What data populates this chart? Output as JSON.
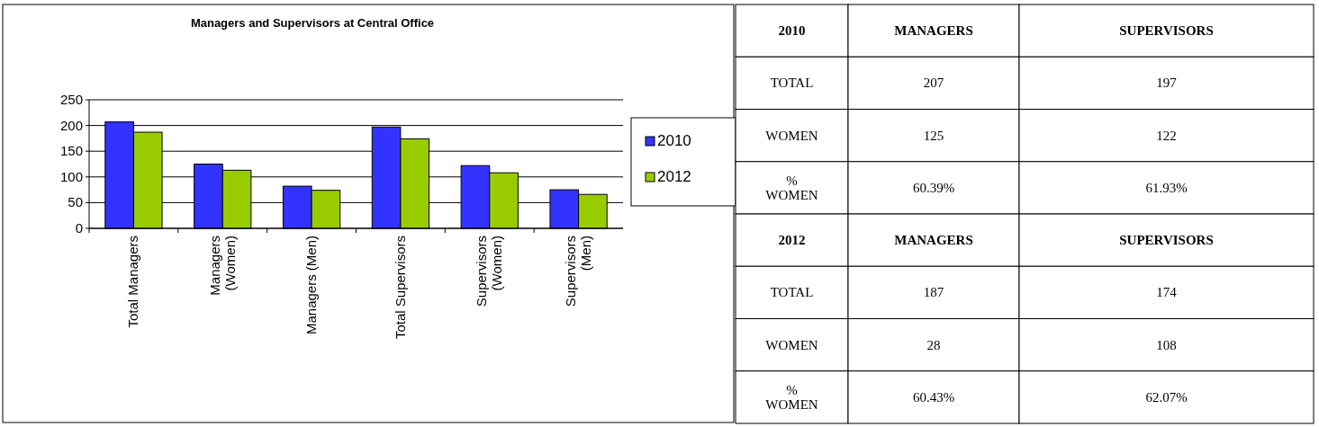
{
  "chart_data": [
    {
      "type": "bar",
      "title": "Managers and Supervisors at Central Office",
      "categories": [
        "Total Managers",
        "Managers\n(Women)",
        "Managers (Men)",
        "Total Supervisors",
        "Supervisors\n(Women)",
        "Supervisors\n(Men)"
      ],
      "series": [
        {
          "name": "2010",
          "color": "#3333ff",
          "values": [
            207,
            125,
            82,
            197,
            122,
            75
          ]
        },
        {
          "name": "2012",
          "color": "#99cc00",
          "values": [
            187,
            113,
            74,
            174,
            108,
            66
          ]
        }
      ],
      "ylim": [
        0,
        250
      ],
      "yticks": [
        0,
        50,
        100,
        150,
        200,
        250
      ],
      "grid": "y",
      "legend": "right"
    },
    {
      "type": "other",
      "annotations": [
        "2010",
        "MANAGERS",
        "SUPERVISORS",
        "TOTAL",
        "207",
        "197",
        "WOMEN",
        "125",
        "122",
        "% WOMEN",
        "60.39%",
        "61.93%",
        "2012",
        "MANAGERS",
        "SUPERVISORS",
        "TOTAL",
        "187",
        "174",
        "WOMEN",
        "28",
        "108",
        "% WOMEN",
        "60.43%",
        "62.07%"
      ]
    }
  ]
}
